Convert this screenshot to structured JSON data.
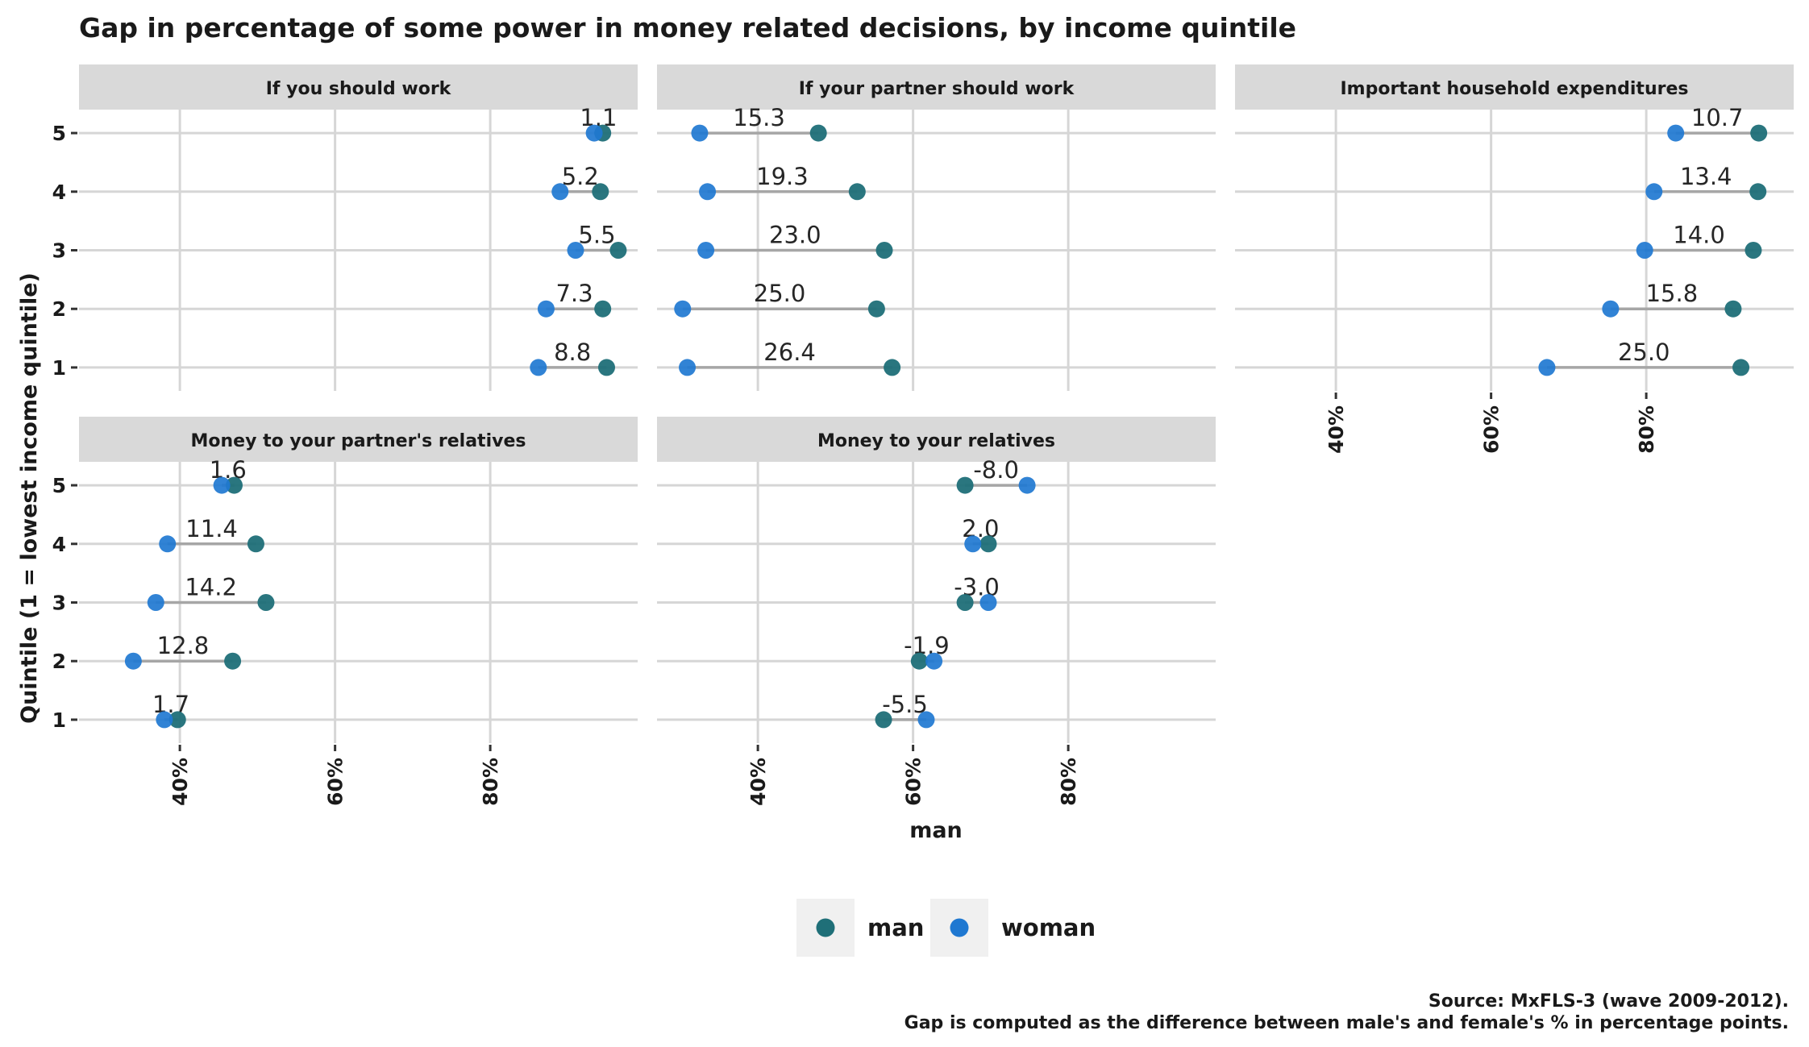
{
  "chart_data": {
    "type": "dumbbell",
    "title": "Gap in percentage of some power in money related decisions, by income quintile",
    "xlabel": "man",
    "ylabel": "Quintile (1 = lowest income quintile)",
    "x_ticks": [
      "40%",
      "60%",
      "80%"
    ],
    "x_tick_values": [
      40,
      60,
      80
    ],
    "xlim": [
      27,
      99
    ],
    "y_ticks": [
      "1",
      "2",
      "3",
      "4",
      "5"
    ],
    "ylim": [
      0.6,
      5.4
    ],
    "legend": {
      "position": "bottom",
      "items": [
        {
          "key": "man",
          "label": "man",
          "color": "#1f6f78"
        },
        {
          "key": "woman",
          "label": "woman",
          "color": "#1f78d1"
        }
      ]
    },
    "caption": [
      "Source: MxFLS-3 (wave 2009-2012).",
      "Gap is computed as the difference between male's and female's % in percentage points."
    ],
    "grid": true,
    "facets": [
      {
        "title": "If you should work",
        "rows": [
          {
            "quintile": 5,
            "man": 94.5,
            "woman": 93.4,
            "gap": "1.1"
          },
          {
            "quintile": 4,
            "man": 94.2,
            "woman": 89.0,
            "gap": "5.2"
          },
          {
            "quintile": 3,
            "man": 96.5,
            "woman": 91.0,
            "gap": "5.5"
          },
          {
            "quintile": 2,
            "man": 94.5,
            "woman": 87.2,
            "gap": "7.3"
          },
          {
            "quintile": 1,
            "man": 95.0,
            "woman": 86.2,
            "gap": "8.8"
          }
        ]
      },
      {
        "title": "If your partner should work",
        "rows": [
          {
            "quintile": 5,
            "man": 47.8,
            "woman": 32.5,
            "gap": "15.3"
          },
          {
            "quintile": 4,
            "man": 52.8,
            "woman": 33.5,
            "gap": "19.3"
          },
          {
            "quintile": 3,
            "man": 56.3,
            "woman": 33.3,
            "gap": "23.0"
          },
          {
            "quintile": 2,
            "man": 55.3,
            "woman": 30.3,
            "gap": "25.0"
          },
          {
            "quintile": 1,
            "man": 57.3,
            "woman": 30.9,
            "gap": "26.4"
          }
        ]
      },
      {
        "title": "Important household expenditures",
        "rows": [
          {
            "quintile": 5,
            "man": 94.5,
            "woman": 83.8,
            "gap": "10.7"
          },
          {
            "quintile": 4,
            "man": 94.4,
            "woman": 81.0,
            "gap": "13.4"
          },
          {
            "quintile": 3,
            "man": 93.8,
            "woman": 79.8,
            "gap": "14.0"
          },
          {
            "quintile": 2,
            "man": 91.2,
            "woman": 75.4,
            "gap": "15.8"
          },
          {
            "quintile": 1,
            "man": 92.2,
            "woman": 67.2,
            "gap": "25.0"
          }
        ]
      },
      {
        "title": "Money to your partner's relatives",
        "rows": [
          {
            "quintile": 5,
            "man": 47.0,
            "woman": 45.4,
            "gap": "1.6"
          },
          {
            "quintile": 4,
            "man": 49.8,
            "woman": 38.4,
            "gap": "11.4"
          },
          {
            "quintile": 3,
            "man": 51.1,
            "woman": 36.9,
            "gap": "14.2"
          },
          {
            "quintile": 2,
            "man": 46.8,
            "woman": 34.0,
            "gap": "12.8"
          },
          {
            "quintile": 1,
            "man": 39.7,
            "woman": 38.0,
            "gap": "1.7"
          }
        ]
      },
      {
        "title": "Money to your relatives",
        "rows": [
          {
            "quintile": 5,
            "man": 66.7,
            "woman": 74.7,
            "gap": "-8.0"
          },
          {
            "quintile": 4,
            "man": 69.7,
            "woman": 67.7,
            "gap": "2.0"
          },
          {
            "quintile": 3,
            "man": 66.7,
            "woman": 69.7,
            "gap": "-3.0"
          },
          {
            "quintile": 2,
            "man": 60.8,
            "woman": 62.7,
            "gap": "-1.9"
          },
          {
            "quintile": 1,
            "man": 56.2,
            "woman": 61.7,
            "gap": "-5.5"
          }
        ]
      }
    ]
  }
}
